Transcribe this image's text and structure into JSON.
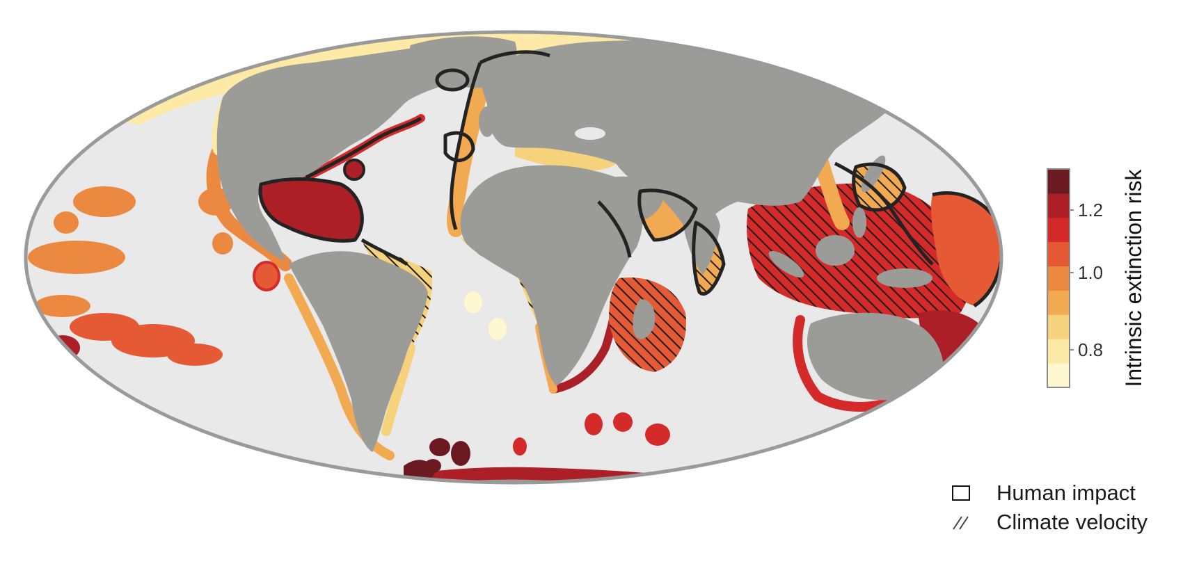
{
  "map": {
    "projection": "Mollweide",
    "ocean_color": "#e9e9e9",
    "land_color": "#9b9b97",
    "border_color": "#9a9a9a",
    "human_impact_outline_color": "#232323"
  },
  "colorbar": {
    "title": "Intrinsic extinction risk",
    "ticks": [
      "1.2",
      "1.0",
      "0.8"
    ],
    "bins": [
      "#fef7cf",
      "#fdeaa6",
      "#f7d27c",
      "#f1aa52",
      "#ec8941",
      "#e55a35",
      "#d42a2a",
      "#ac1f26",
      "#6b1a22"
    ]
  },
  "legend": {
    "human_impact": "Human impact",
    "climate_velocity": "Climate velocity"
  }
}
